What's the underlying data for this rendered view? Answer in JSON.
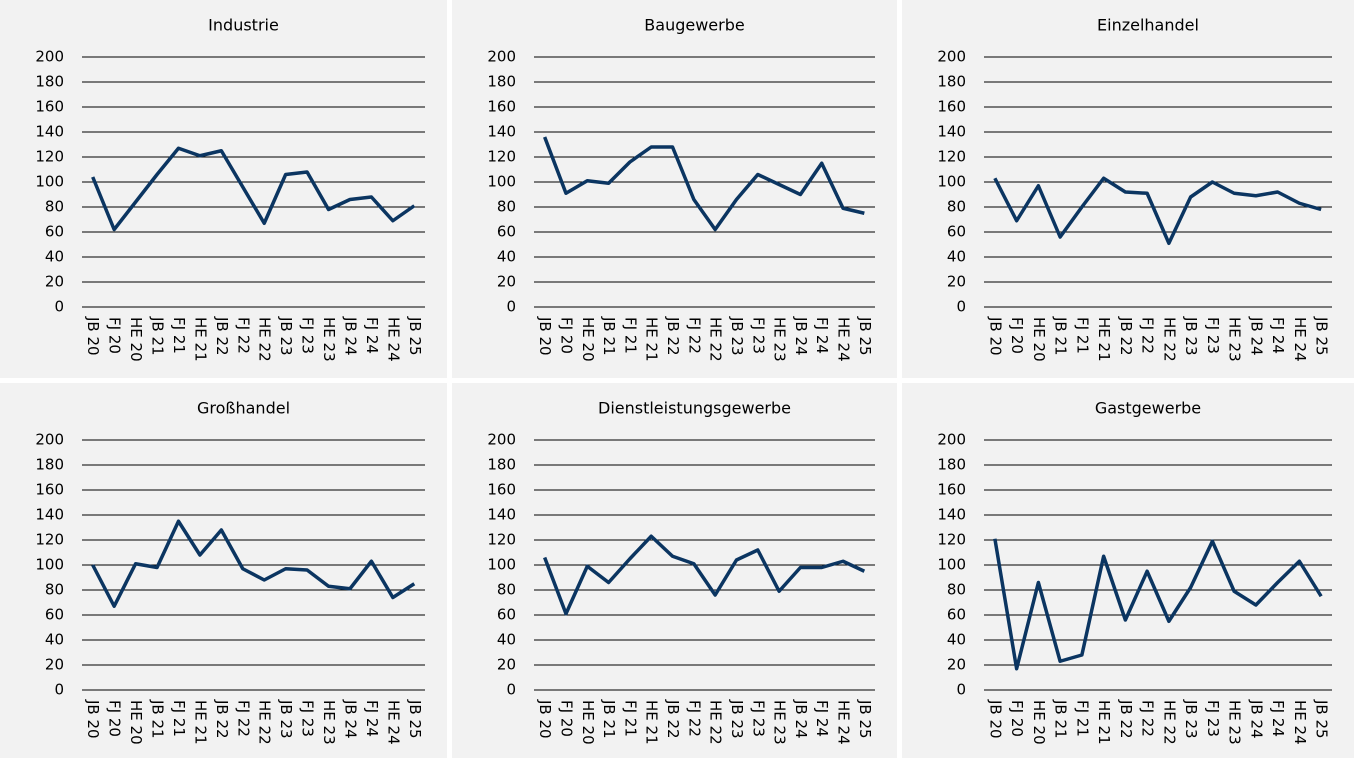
{
  "chart_data": [
    {
      "type": "line",
      "title": "Industrie",
      "categories": [
        "JB 20",
        "FJ 20",
        "HE 20",
        "JB 21",
        "FJ 21",
        "HE 21",
        "JB 22",
        "FJ 22",
        "HE 22",
        "JB 23",
        "FJ 23",
        "HE 23",
        "JB 24",
        "FJ 24",
        "HE 24",
        "JB 25"
      ],
      "values": [
        104,
        62,
        84,
        106,
        127,
        121,
        125,
        96,
        67,
        106,
        108,
        78,
        86,
        88,
        69,
        81
      ],
      "color": "#0b3561",
      "ylim": [
        0,
        200
      ],
      "yticks": [
        0,
        20,
        40,
        60,
        80,
        100,
        120,
        140,
        160,
        180,
        200
      ],
      "grid": true
    },
    {
      "type": "line",
      "title": "Baugewerbe",
      "categories": [
        "JB 20",
        "FJ 20",
        "HE 20",
        "JB 21",
        "FJ 21",
        "HE 21",
        "JB 22",
        "FJ 22",
        "HE 22",
        "JB 23",
        "FJ 23",
        "HE 23",
        "JB 24",
        "FJ 24",
        "HE 24",
        "JB 25"
      ],
      "values": [
        136,
        91,
        101,
        99,
        116,
        128,
        128,
        86,
        62,
        86,
        106,
        98,
        90,
        115,
        79,
        75
      ],
      "color": "#0b3561",
      "ylim": [
        0,
        200
      ],
      "yticks": [
        0,
        20,
        40,
        60,
        80,
        100,
        120,
        140,
        160,
        180,
        200
      ],
      "grid": true
    },
    {
      "type": "line",
      "title": "Einzelhandel",
      "categories": [
        "JB 20",
        "FJ 20",
        "HE 20",
        "JB 21",
        "FJ 21",
        "HE 21",
        "JB 22",
        "FJ 22",
        "HE 22",
        "JB 23",
        "FJ 23",
        "HE 23",
        "JB 24",
        "FJ 24",
        "HE 24",
        "JB 25"
      ],
      "values": [
        103,
        69,
        97,
        56,
        80,
        103,
        92,
        91,
        51,
        88,
        100,
        91,
        89,
        92,
        83,
        78
      ],
      "color": "#0b3561",
      "ylim": [
        0,
        200
      ],
      "yticks": [
        0,
        20,
        40,
        60,
        80,
        100,
        120,
        140,
        160,
        180,
        200
      ],
      "grid": true
    },
    {
      "type": "line",
      "title": "Großhandel",
      "categories": [
        "JB 20",
        "FJ 20",
        "HE 20",
        "JB 21",
        "FJ 21",
        "HE 21",
        "JB 22",
        "FJ 22",
        "HE 22",
        "JB 23",
        "FJ 23",
        "HE 23",
        "JB 24",
        "FJ 24",
        "HE 24",
        "JB 25"
      ],
      "values": [
        100,
        67,
        101,
        98,
        135,
        108,
        128,
        97,
        88,
        97,
        96,
        83,
        81,
        103,
        74,
        85
      ],
      "color": "#0b3561",
      "ylim": [
        0,
        200
      ],
      "yticks": [
        0,
        20,
        40,
        60,
        80,
        100,
        120,
        140,
        160,
        180,
        200
      ],
      "grid": true
    },
    {
      "type": "line",
      "title": "Dienstleistungsgewerbe",
      "categories": [
        "JB 20",
        "FJ 20",
        "HE 20",
        "JB 21",
        "FJ 21",
        "HE 21",
        "JB 22",
        "FJ 22",
        "HE 22",
        "JB 23",
        "FJ 23",
        "HE 23",
        "JB 24",
        "FJ 24",
        "HE 24",
        "JB 25"
      ],
      "values": [
        106,
        61,
        99,
        86,
        105,
        123,
        107,
        101,
        76,
        104,
        112,
        79,
        98,
        98,
        103,
        95
      ],
      "color": "#0b3561",
      "ylim": [
        0,
        200
      ],
      "yticks": [
        0,
        20,
        40,
        60,
        80,
        100,
        120,
        140,
        160,
        180,
        200
      ],
      "grid": true
    },
    {
      "type": "line",
      "title": "Gastgewerbe",
      "categories": [
        "JB 20",
        "FJ 20",
        "HE 20",
        "JB 21",
        "FJ 21",
        "HE 21",
        "JB 22",
        "FJ 22",
        "HE 22",
        "JB 23",
        "FJ 23",
        "HE 23",
        "JB 24",
        "FJ 24",
        "HE 24",
        "JB 25"
      ],
      "values": [
        121,
        17,
        86,
        23,
        28,
        107,
        56,
        95,
        55,
        82,
        119,
        79,
        68,
        86,
        103,
        75
      ],
      "color": "#0b3561",
      "ylim": [
        0,
        200
      ],
      "yticks": [
        0,
        20,
        40,
        60,
        80,
        100,
        120,
        140,
        160,
        180,
        200
      ],
      "grid": true
    }
  ]
}
